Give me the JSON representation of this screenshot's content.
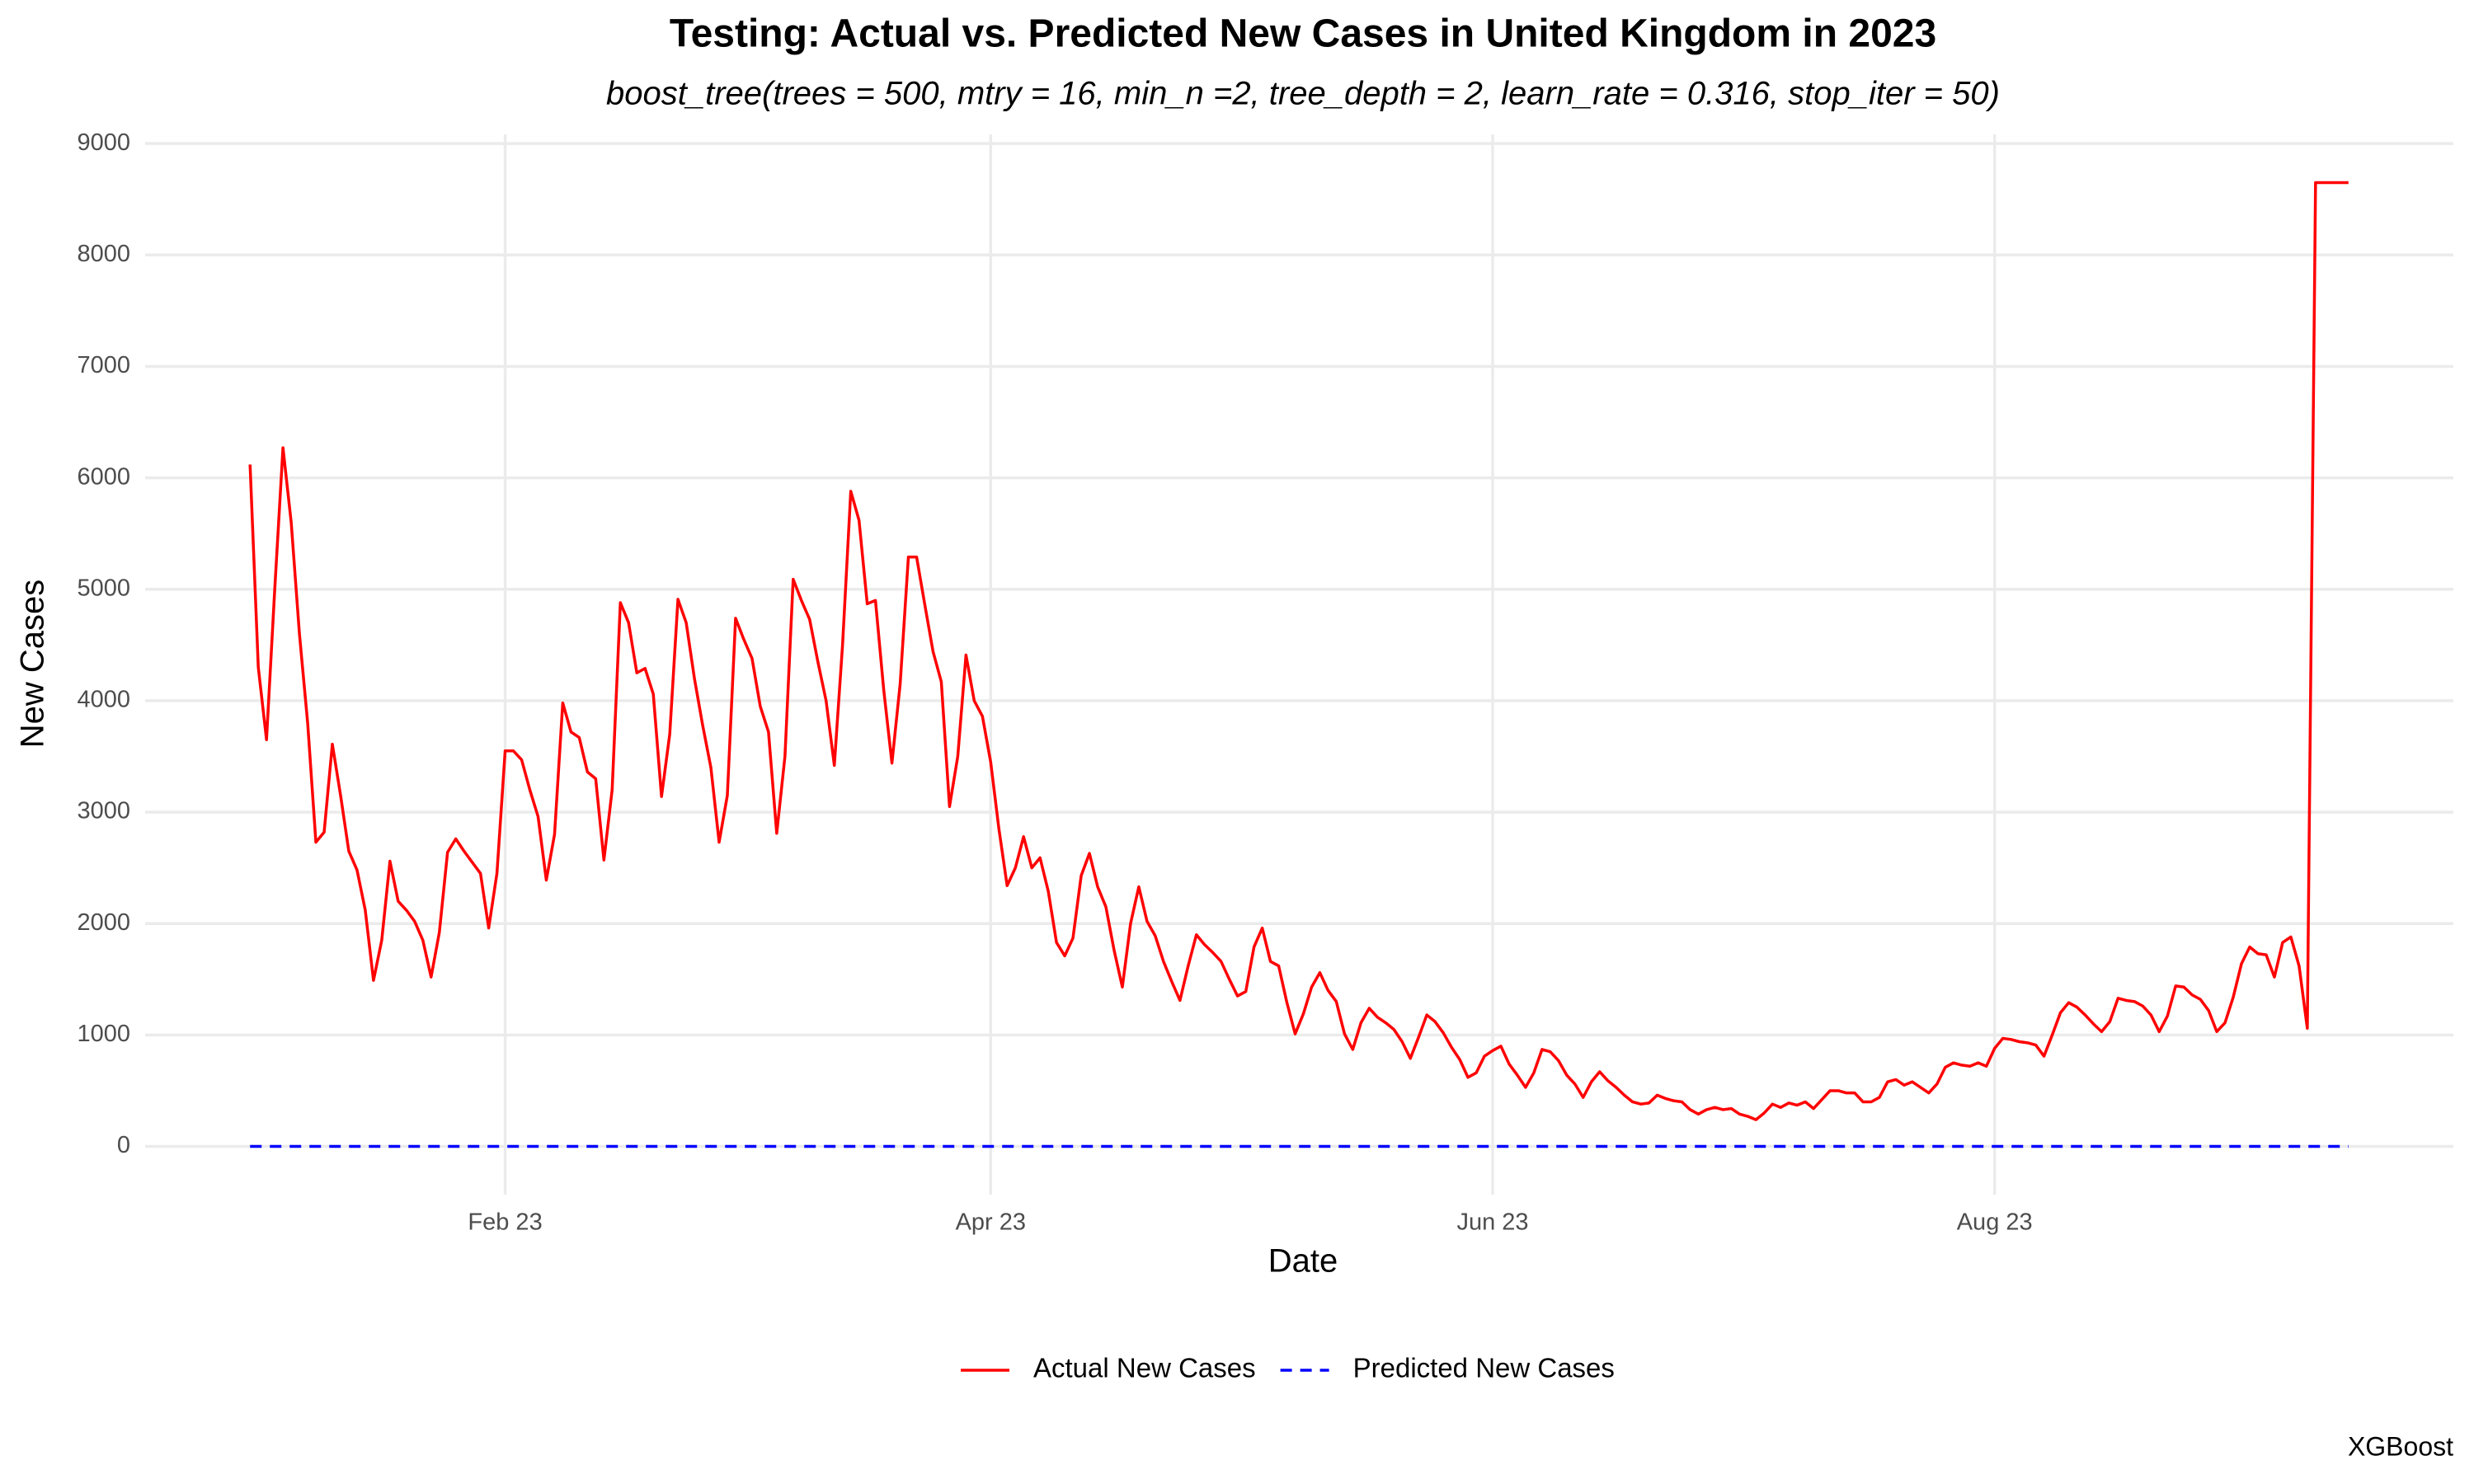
{
  "chart_data": {
    "type": "line",
    "title": "Testing: Actual vs. Predicted New Cases in United Kingdom in 2023",
    "subtitle": "boost_tree(trees = 500, mtry = 16, min_n =2, tree_depth = 2, learn_rate = 0.316, stop_iter = 50)",
    "x_label": "Date",
    "y_label": "New Cases",
    "caption": "XGBoost",
    "legend": "bottom",
    "grid": true,
    "ylim": [
      -432.5,
      9082.5
    ],
    "yticks": [
      0,
      1000,
      2000,
      3000,
      4000,
      5000,
      6000,
      7000,
      8000,
      9000
    ],
    "categories": [
      null,
      null,
      null,
      null,
      null,
      null,
      null,
      null,
      null,
      null,
      null,
      null,
      null,
      null,
      null,
      null,
      null,
      null,
      null,
      null,
      null,
      null,
      null,
      null,
      null,
      null,
      null,
      null,
      null,
      null,
      null,
      "Feb 23",
      null,
      null,
      null,
      null,
      null,
      null,
      null,
      null,
      null,
      null,
      null,
      null,
      null,
      null,
      null,
      null,
      null,
      null,
      null,
      null,
      null,
      null,
      null,
      null,
      null,
      null,
      null,
      null,
      null,
      null,
      null,
      null,
      null,
      null,
      null,
      null,
      null,
      null,
      null,
      null,
      null,
      null,
      null,
      null,
      null,
      null,
      null,
      null,
      null,
      null,
      null,
      null,
      null,
      null,
      null,
      null,
      null,
      null,
      "Apr 23",
      null,
      null,
      null,
      null,
      null,
      null,
      null,
      null,
      null,
      null,
      null,
      null,
      null,
      null,
      null,
      null,
      null,
      null,
      null,
      null,
      null,
      null,
      null,
      null,
      null,
      null,
      null,
      null,
      null,
      null,
      null,
      null,
      null,
      null,
      null,
      null,
      null,
      null,
      null,
      null,
      null,
      null,
      null,
      null,
      null,
      null,
      null,
      null,
      null,
      null,
      null,
      null,
      null,
      null,
      null,
      null,
      null,
      null,
      null,
      null,
      "Jun 23",
      null,
      null,
      null,
      null,
      null,
      null,
      null,
      null,
      null,
      null,
      null,
      null,
      null,
      null,
      null,
      null,
      null,
      null,
      null,
      null,
      null,
      null,
      null,
      null,
      null,
      null,
      null,
      null,
      null,
      null,
      null,
      null,
      null,
      null,
      null,
      null,
      null,
      null,
      null,
      null,
      null,
      null,
      null,
      null,
      null,
      null,
      null,
      null,
      null,
      null,
      null,
      null,
      null,
      null,
      null,
      null,
      null,
      null,
      null,
      null,
      "Aug 23",
      null,
      null,
      null,
      null,
      null,
      null,
      null,
      null,
      null,
      null,
      null,
      null,
      null,
      null,
      null,
      null,
      null,
      null,
      null,
      null,
      null,
      null,
      null,
      null,
      null,
      null,
      null,
      null,
      null,
      null,
      null,
      null,
      null,
      null,
      null,
      null,
      null,
      null,
      null,
      null,
      null,
      null,
      null
    ],
    "series": [
      {
        "name": "Actual New Cases",
        "color": "#ff0000",
        "dash": "solid",
        "values": [
          6120,
          4300,
          3650,
          5000,
          6270,
          5600,
          4600,
          3800,
          2730,
          2820,
          3610,
          3150,
          2650,
          2480,
          2120,
          1490,
          1850,
          2560,
          2200,
          2120,
          2020,
          1850,
          1520,
          1920,
          2640,
          2760,
          2650,
          2550,
          2450,
          1960,
          2450,
          3550,
          3550,
          3470,
          3200,
          2960,
          2390,
          2800,
          3980,
          3720,
          3670,
          3360,
          3300,
          2570,
          3200,
          4880,
          4700,
          4250,
          4290,
          4060,
          3140,
          3700,
          4910,
          4700,
          4200,
          3780,
          3400,
          2730,
          3150,
          4740,
          4550,
          4380,
          3950,
          3720,
          2810,
          3500,
          5090,
          4900,
          4730,
          4350,
          4000,
          3420,
          4500,
          5880,
          5620,
          4870,
          4900,
          4100,
          3440,
          4150,
          5290,
          5290,
          4860,
          4440,
          4170,
          3050,
          3500,
          4410,
          4000,
          3860,
          3450,
          2850,
          2340,
          2500,
          2780,
          2500,
          2590,
          2290,
          1830,
          1710,
          1870,
          2430,
          2630,
          2330,
          2150,
          1760,
          1430,
          2000,
          2330,
          2020,
          1890,
          1660,
          1480,
          1310,
          1620,
          1900,
          1810,
          1740,
          1660,
          1500,
          1350,
          1390,
          1790,
          1960,
          1660,
          1620,
          1290,
          1010,
          1190,
          1430,
          1560,
          1400,
          1300,
          1010,
          870,
          1110,
          1240,
          1160,
          1110,
          1050,
          940,
          790,
          980,
          1180,
          1120,
          1020,
          890,
          780,
          620,
          660,
          810,
          860,
          900,
          740,
          640,
          530,
          660,
          870,
          850,
          770,
          640,
          560,
          440,
          580,
          670,
          590,
          530,
          460,
          400,
          380,
          390,
          460,
          430,
          410,
          400,
          330,
          290,
          330,
          350,
          330,
          340,
          290,
          270,
          240,
          300,
          380,
          350,
          390,
          370,
          400,
          340,
          420,
          500,
          500,
          480,
          480,
          400,
          400,
          440,
          580,
          600,
          550,
          580,
          530,
          480,
          560,
          710,
          750,
          730,
          720,
          750,
          720,
          880,
          970,
          960,
          940,
          930,
          910,
          810,
          1000,
          1200,
          1290,
          1250,
          1180,
          1100,
          1030,
          1120,
          1330,
          1310,
          1300,
          1260,
          1180,
          1030,
          1170,
          1440,
          1430,
          1360,
          1320,
          1220,
          1030,
          1110,
          1340,
          1640,
          1790,
          1730,
          1720,
          1520,
          1830,
          1880,
          1620,
          1060,
          8650,
          8650,
          8650,
          8650,
          8650
        ]
      },
      {
        "name": "Predicted New Cases",
        "color": "#0000ff",
        "dash": "dashed",
        "values": [
          0,
          0,
          0,
          0,
          0,
          0,
          0,
          0,
          0,
          0,
          0,
          0,
          0,
          0,
          0,
          0,
          0,
          0,
          0,
          0,
          0,
          0,
          0,
          0,
          0,
          0,
          0,
          0,
          0,
          0,
          0,
          0,
          0,
          0,
          0,
          0,
          0,
          0,
          0,
          0,
          0,
          0,
          0,
          0,
          0,
          0,
          0,
          0,
          0,
          0,
          0,
          0,
          0,
          0,
          0,
          0,
          0,
          0,
          0,
          0,
          0,
          0,
          0,
          0,
          0,
          0,
          0,
          0,
          0,
          0,
          0,
          0,
          0,
          0,
          0,
          0,
          0,
          0,
          0,
          0,
          0,
          0,
          0,
          0,
          0,
          0,
          0,
          0,
          0,
          0,
          0,
          0,
          0,
          0,
          0,
          0,
          0,
          0,
          0,
          0,
          0,
          0,
          0,
          0,
          0,
          0,
          0,
          0,
          0,
          0,
          0,
          0,
          0,
          0,
          0,
          0,
          0,
          0,
          0,
          0,
          0,
          0,
          0,
          0,
          0,
          0,
          0,
          0,
          0,
          0,
          0,
          0,
          0,
          0,
          0,
          0,
          0,
          0,
          0,
          0,
          0,
          0,
          0,
          0,
          0,
          0,
          0,
          0,
          0,
          0,
          0,
          0,
          0,
          0,
          0,
          0,
          0,
          0,
          0,
          0,
          0,
          0,
          0,
          0,
          0,
          0,
          0,
          0,
          0,
          0,
          0,
          0,
          0,
          0,
          0,
          0,
          0,
          0,
          0,
          0,
          0,
          0,
          0,
          0,
          0,
          0,
          0,
          0,
          0,
          0,
          0,
          0,
          0,
          0,
          0,
          0,
          0,
          0,
          0,
          0,
          0,
          0,
          0,
          0,
          0,
          0,
          0,
          0,
          0,
          0,
          0,
          0,
          0,
          0,
          0,
          0,
          0,
          0,
          0,
          0,
          0,
          0,
          0,
          0,
          0,
          0,
          0,
          0,
          0,
          0,
          0,
          0,
          0,
          0,
          0,
          0,
          0,
          0,
          0,
          0,
          0,
          0,
          0,
          0,
          0,
          0,
          0,
          0,
          0,
          0,
          0,
          0,
          0,
          0,
          0,
          0
        ]
      }
    ]
  }
}
